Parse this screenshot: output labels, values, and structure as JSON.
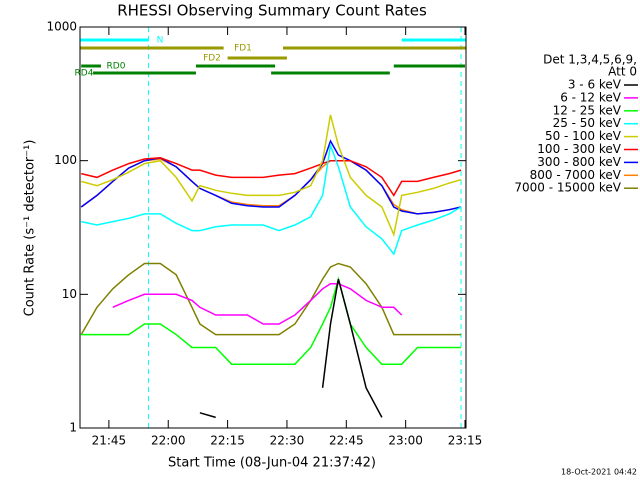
{
  "chart_data": {
    "type": "line",
    "title": "RHESSI Observing Summary Count Rates",
    "xlabel": "Start Time (08-Jun-04 21:37:42)",
    "ylabel": "Count Rate (s⁻¹ detector⁻¹)",
    "legend_title": [
      "Det 1,3,4,5,6,9,",
      "Att 0"
    ],
    "timestamp": "18-Oct-2021 04:42",
    "ylog": true,
    "legend": "right",
    "ylim": [
      1,
      1000
    ],
    "yticks": [
      1,
      10,
      100,
      1000
    ],
    "xlim": [
      "21:37:42",
      "23:15:15"
    ],
    "xticks": [
      "21:45",
      "22:00",
      "22:15",
      "22:30",
      "22:45",
      "23:00",
      "23:15"
    ],
    "x": [
      "21:38",
      "21:42",
      "21:46",
      "21:50",
      "21:54",
      "21:58",
      "22:02",
      "22:06",
      "22:08",
      "22:12",
      "22:16",
      "22:20",
      "22:24",
      "22:28",
      "22:32",
      "22:36",
      "22:39",
      "22:41",
      "22:43",
      "22:46",
      "22:50",
      "22:54",
      "22:57",
      "22:59",
      "23:03",
      "23:07",
      "23:11",
      "23:14"
    ],
    "series": [
      {
        "name": "3 - 6 keV",
        "color": "#000000",
        "values": [
          null,
          null,
          null,
          null,
          null,
          null,
          null,
          null,
          1.3,
          1.2,
          null,
          null,
          null,
          null,
          null,
          null,
          2,
          6,
          13,
          6,
          2,
          1.2,
          null,
          null,
          null,
          null,
          null,
          null
        ]
      },
      {
        "name": "6 - 12 keV",
        "color": "#ff00ff",
        "values": [
          null,
          null,
          8,
          9,
          10,
          10,
          10,
          9,
          8,
          7,
          7,
          7,
          6,
          6,
          7,
          9,
          11,
          12,
          12,
          11,
          9,
          8,
          8,
          7,
          null,
          null,
          null,
          null
        ]
      },
      {
        "name": "12 - 25 keV",
        "color": "#00ff00",
        "values": [
          5,
          5,
          5,
          5,
          6,
          6,
          5,
          4,
          4,
          4,
          3,
          3,
          3,
          3,
          3,
          4,
          6,
          8,
          13,
          6,
          4,
          3,
          3,
          3,
          4,
          4,
          4,
          4
        ]
      },
      {
        "name": "25 - 50 keV",
        "color": "#00ffff",
        "values": [
          35,
          33,
          35,
          37,
          40,
          40,
          34,
          30,
          30,
          32,
          33,
          33,
          33,
          30,
          33,
          38,
          55,
          130,
          90,
          45,
          32,
          26,
          20,
          30,
          33,
          36,
          40,
          45
        ]
      },
      {
        "name": "50 - 100 keV",
        "color": "#cccc00",
        "values": [
          70,
          65,
          72,
          82,
          95,
          100,
          75,
          50,
          65,
          60,
          57,
          55,
          55,
          55,
          58,
          65,
          100,
          220,
          130,
          75,
          55,
          45,
          28,
          55,
          58,
          62,
          68,
          72
        ]
      },
      {
        "name": "100 - 300 keV",
        "color": "#ff0000",
        "values": [
          80,
          75,
          85,
          95,
          103,
          105,
          95,
          85,
          85,
          78,
          75,
          75,
          75,
          78,
          80,
          88,
          95,
          100,
          100,
          100,
          90,
          75,
          55,
          70,
          70,
          75,
          80,
          85
        ]
      },
      {
        "name": "300 - 800 keV",
        "color": "#0000ff",
        "values": [
          45,
          55,
          70,
          88,
          100,
          105,
          90,
          70,
          62,
          55,
          48,
          46,
          45,
          45,
          55,
          72,
          95,
          140,
          110,
          100,
          85,
          65,
          45,
          42,
          40,
          41,
          43,
          45
        ]
      },
      {
        "name": "800 - 7000 keV",
        "color": "#ff8000",
        "values": [
          45,
          55,
          70,
          88,
          100,
          103,
          90,
          70,
          62,
          55,
          49,
          47,
          46,
          46,
          55,
          72,
          90,
          100,
          100,
          100,
          85,
          65,
          47,
          43,
          40,
          41,
          43,
          45
        ]
      },
      {
        "name": "7000 - 15000 keV",
        "color": "#808000",
        "values": [
          5,
          8,
          11,
          14,
          17,
          17,
          14,
          8,
          6,
          5,
          5,
          5,
          5,
          5,
          6,
          9,
          13,
          16,
          17,
          16,
          12,
          8,
          5,
          5,
          5,
          5,
          5,
          5
        ]
      }
    ],
    "flags": [
      {
        "label": "N",
        "color": "#00ffff",
        "spans": [
          [
            "21:37:42",
            "21:55"
          ],
          [
            "22:59",
            "23:15:15"
          ]
        ]
      },
      {
        "label": "FD1",
        "color": "#999900",
        "spans": [
          [
            "21:37:42",
            "22:14"
          ],
          [
            "22:29",
            "23:15:15"
          ]
        ]
      },
      {
        "label": "FD2",
        "color": "#999900",
        "spans": [
          [
            "22:15",
            "22:30"
          ]
        ]
      },
      {
        "label": "RD0",
        "color": "#008000",
        "spans": [
          [
            "21:38",
            "21:43"
          ],
          [
            "22:07",
            "22:27"
          ],
          [
            "22:57",
            "23:15"
          ]
        ]
      },
      {
        "label": "RD4",
        "color": "#008000",
        "spans": [
          [
            "21:41",
            "22:07"
          ],
          [
            "22:26",
            "22:56"
          ]
        ]
      }
    ],
    "markers": {
      "color": "#00ffff",
      "x": [
        "21:55",
        "23:14"
      ]
    }
  }
}
